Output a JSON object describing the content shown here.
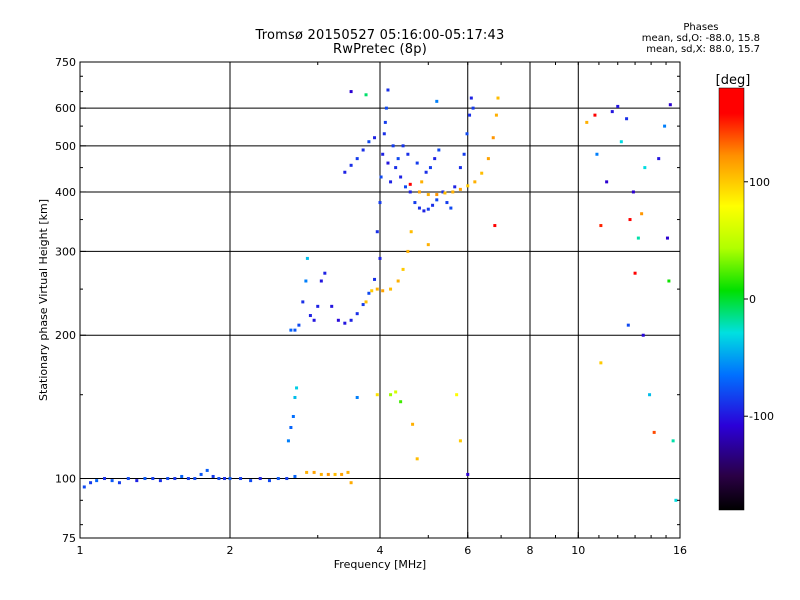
{
  "title": {
    "line1": "Tromsø 20150527 05:16:00-05:17:43",
    "line2": "RwPretec (8p)"
  },
  "phases": {
    "header": "Phases",
    "line_o": "mean, sd,O: -88.0, 15.8",
    "line_x": "mean, sd,X:  88.0, 15.7"
  },
  "colorbar": {
    "label": "[deg]",
    "range": [
      -180,
      180
    ],
    "ticks": [
      {
        "value": 100,
        "label": "100"
      },
      {
        "value": 0,
        "label": "0"
      },
      {
        "value": -100,
        "label": "-100"
      }
    ]
  },
  "chart_data": {
    "type": "scatter",
    "xlabel": "Frequency [MHz]",
    "ylabel": "Stationary phase Virtual Height [km]",
    "xscale": "log",
    "yscale": "log",
    "xlim": [
      1,
      16
    ],
    "ylim": [
      75,
      750
    ],
    "xticks": [
      {
        "value": 1,
        "label": "1"
      },
      {
        "value": 2,
        "label": "2"
      },
      {
        "value": 4,
        "label": "4"
      },
      {
        "value": 6,
        "label": "6"
      },
      {
        "value": 8,
        "label": "8"
      },
      {
        "value": 10,
        "label": "10"
      },
      {
        "value": 16,
        "label": "16"
      }
    ],
    "xgrid": [
      2,
      4,
      6,
      8,
      10
    ],
    "yticks": [
      {
        "value": 75,
        "label": "75"
      },
      {
        "value": 100,
        "label": "100"
      },
      {
        "value": 200,
        "label": "200"
      },
      {
        "value": 300,
        "label": "300"
      },
      {
        "value": 400,
        "label": "400"
      },
      {
        "value": 500,
        "label": "500"
      },
      {
        "value": 600,
        "label": "600"
      },
      {
        "value": 750,
        "label": "750"
      }
    ],
    "ygrid": [
      100,
      200,
      300,
      400,
      500,
      600
    ],
    "grid": true,
    "points": [
      {
        "f": 1.02,
        "h": 96,
        "p": -80
      },
      {
        "f": 1.05,
        "h": 98,
        "p": -85
      },
      {
        "f": 1.08,
        "h": 99,
        "p": -70
      },
      {
        "f": 1.12,
        "h": 100,
        "p": -90
      },
      {
        "f": 1.16,
        "h": 99,
        "p": -75
      },
      {
        "f": 1.2,
        "h": 98,
        "p": -85
      },
      {
        "f": 1.25,
        "h": 100,
        "p": -80
      },
      {
        "f": 1.3,
        "h": 99,
        "p": -95
      },
      {
        "f": 1.35,
        "h": 100,
        "p": -75
      },
      {
        "f": 1.4,
        "h": 100,
        "p": -85
      },
      {
        "f": 1.45,
        "h": 99,
        "p": -90
      },
      {
        "f": 1.5,
        "h": 100,
        "p": -80
      },
      {
        "f": 1.55,
        "h": 100,
        "p": -88
      },
      {
        "f": 1.6,
        "h": 101,
        "p": -70
      },
      {
        "f": 1.65,
        "h": 100,
        "p": -85
      },
      {
        "f": 1.7,
        "h": 100,
        "p": -80
      },
      {
        "f": 1.75,
        "h": 102,
        "p": -75
      },
      {
        "f": 1.8,
        "h": 104,
        "p": -72
      },
      {
        "f": 1.85,
        "h": 101,
        "p": -85
      },
      {
        "f": 1.9,
        "h": 100,
        "p": -80
      },
      {
        "f": 1.95,
        "h": 100,
        "p": -90
      },
      {
        "f": 2.0,
        "h": 100,
        "p": -75
      },
      {
        "f": 2.1,
        "h": 100,
        "p": -85
      },
      {
        "f": 2.2,
        "h": 99,
        "p": -80
      },
      {
        "f": 2.3,
        "h": 100,
        "p": -95
      },
      {
        "f": 2.4,
        "h": 99,
        "p": -80
      },
      {
        "f": 2.5,
        "h": 100,
        "p": -75
      },
      {
        "f": 2.6,
        "h": 100,
        "p": -85
      },
      {
        "f": 2.7,
        "h": 101,
        "p": -70
      },
      {
        "f": 2.85,
        "h": 103,
        "p": 110
      },
      {
        "f": 2.95,
        "h": 103,
        "p": 115
      },
      {
        "f": 3.05,
        "h": 102,
        "p": 110
      },
      {
        "f": 3.15,
        "h": 102,
        "p": 120
      },
      {
        "f": 3.25,
        "h": 102,
        "p": 105
      },
      {
        "f": 3.35,
        "h": 102,
        "p": 115
      },
      {
        "f": 3.45,
        "h": 103,
        "p": 110
      },
      {
        "f": 3.5,
        "h": 98,
        "p": 112
      },
      {
        "f": 2.62,
        "h": 120,
        "p": -60
      },
      {
        "f": 2.65,
        "h": 128,
        "p": -70
      },
      {
        "f": 2.68,
        "h": 135,
        "p": -65
      },
      {
        "f": 2.7,
        "h": 148,
        "p": -40
      },
      {
        "f": 2.72,
        "h": 155,
        "p": -35
      },
      {
        "f": 2.65,
        "h": 205,
        "p": -70
      },
      {
        "f": 2.7,
        "h": 205,
        "p": -75
      },
      {
        "f": 2.75,
        "h": 210,
        "p": -80
      },
      {
        "f": 2.8,
        "h": 235,
        "p": -90
      },
      {
        "f": 2.84,
        "h": 260,
        "p": -60
      },
      {
        "f": 2.86,
        "h": 290,
        "p": -40
      },
      {
        "f": 2.9,
        "h": 220,
        "p": -95
      },
      {
        "f": 2.95,
        "h": 215,
        "p": -100
      },
      {
        "f": 3.0,
        "h": 230,
        "p": -95
      },
      {
        "f": 3.05,
        "h": 260,
        "p": -100
      },
      {
        "f": 3.1,
        "h": 270,
        "p": -95
      },
      {
        "f": 3.2,
        "h": 230,
        "p": -100
      },
      {
        "f": 3.3,
        "h": 215,
        "p": -105
      },
      {
        "f": 3.4,
        "h": 212,
        "p": -100
      },
      {
        "f": 3.5,
        "h": 215,
        "p": -95
      },
      {
        "f": 3.6,
        "h": 222,
        "p": -90
      },
      {
        "f": 3.7,
        "h": 232,
        "p": -85
      },
      {
        "f": 3.8,
        "h": 245,
        "p": -80
      },
      {
        "f": 3.9,
        "h": 262,
        "p": -90
      },
      {
        "f": 4.0,
        "h": 290,
        "p": -95
      },
      {
        "f": 3.75,
        "h": 235,
        "p": 105
      },
      {
        "f": 3.85,
        "h": 248,
        "p": 100
      },
      {
        "f": 3.95,
        "h": 250,
        "p": 110
      },
      {
        "f": 4.05,
        "h": 248,
        "p": 115
      },
      {
        "f": 4.2,
        "h": 250,
        "p": 105
      },
      {
        "f": 4.35,
        "h": 260,
        "p": 110
      },
      {
        "f": 4.45,
        "h": 275,
        "p": 100
      },
      {
        "f": 4.55,
        "h": 300,
        "p": 110
      },
      {
        "f": 4.62,
        "h": 330,
        "p": 105
      },
      {
        "f": 3.4,
        "h": 440,
        "p": -95
      },
      {
        "f": 3.5,
        "h": 455,
        "p": -90
      },
      {
        "f": 3.6,
        "h": 470,
        "p": -85
      },
      {
        "f": 3.7,
        "h": 490,
        "p": -90
      },
      {
        "f": 3.8,
        "h": 510,
        "p": -80
      },
      {
        "f": 3.9,
        "h": 520,
        "p": -95
      },
      {
        "f": 3.5,
        "h": 650,
        "p": -110
      },
      {
        "f": 3.75,
        "h": 640,
        "p": -10
      },
      {
        "f": 3.95,
        "h": 330,
        "p": -90
      },
      {
        "f": 4.0,
        "h": 380,
        "p": -85
      },
      {
        "f": 4.02,
        "h": 430,
        "p": -80
      },
      {
        "f": 4.05,
        "h": 480,
        "p": -95
      },
      {
        "f": 4.08,
        "h": 530,
        "p": -90
      },
      {
        "f": 4.1,
        "h": 560,
        "p": -85
      },
      {
        "f": 4.12,
        "h": 600,
        "p": -80
      },
      {
        "f": 4.15,
        "h": 460,
        "p": -100
      },
      {
        "f": 4.2,
        "h": 420,
        "p": -95
      },
      {
        "f": 4.25,
        "h": 500,
        "p": -85
      },
      {
        "f": 4.3,
        "h": 450,
        "p": -90
      },
      {
        "f": 4.35,
        "h": 470,
        "p": -80
      },
      {
        "f": 4.4,
        "h": 430,
        "p": -95
      },
      {
        "f": 4.45,
        "h": 500,
        "p": -88
      },
      {
        "f": 4.5,
        "h": 410,
        "p": -80
      },
      {
        "f": 4.55,
        "h": 480,
        "p": -90
      },
      {
        "f": 4.6,
        "h": 400,
        "p": -95
      },
      {
        "f": 4.7,
        "h": 380,
        "p": -85
      },
      {
        "f": 4.8,
        "h": 370,
        "p": -90
      },
      {
        "f": 4.9,
        "h": 365,
        "p": -95
      },
      {
        "f": 5.0,
        "h": 368,
        "p": -85
      },
      {
        "f": 5.1,
        "h": 375,
        "p": -90
      },
      {
        "f": 5.2,
        "h": 385,
        "p": -80
      },
      {
        "f": 4.75,
        "h": 460,
        "p": -85
      },
      {
        "f": 4.85,
        "h": 420,
        "p": 110
      },
      {
        "f": 4.95,
        "h": 440,
        "p": -90
      },
      {
        "f": 5.05,
        "h": 450,
        "p": -85
      },
      {
        "f": 5.15,
        "h": 470,
        "p": -95
      },
      {
        "f": 5.25,
        "h": 490,
        "p": -80
      },
      {
        "f": 5.35,
        "h": 400,
        "p": -90
      },
      {
        "f": 5.45,
        "h": 380,
        "p": -85
      },
      {
        "f": 5.55,
        "h": 370,
        "p": -80
      },
      {
        "f": 5.65,
        "h": 410,
        "p": -95
      },
      {
        "f": 5.8,
        "h": 450,
        "p": -90
      },
      {
        "f": 5.9,
        "h": 480,
        "p": -85
      },
      {
        "f": 5.98,
        "h": 530,
        "p": -80
      },
      {
        "f": 6.05,
        "h": 580,
        "p": -90
      },
      {
        "f": 6.1,
        "h": 630,
        "p": -95
      },
      {
        "f": 6.15,
        "h": 600,
        "p": -85
      },
      {
        "f": 4.8,
        "h": 400,
        "p": 115
      },
      {
        "f": 5.0,
        "h": 395,
        "p": 110
      },
      {
        "f": 5.2,
        "h": 395,
        "p": 120
      },
      {
        "f": 5.4,
        "h": 398,
        "p": 105
      },
      {
        "f": 5.6,
        "h": 400,
        "p": 110
      },
      {
        "f": 5.8,
        "h": 405,
        "p": 115
      },
      {
        "f": 6.0,
        "h": 412,
        "p": 100
      },
      {
        "f": 6.2,
        "h": 420,
        "p": 110
      },
      {
        "f": 6.4,
        "h": 438,
        "p": 105
      },
      {
        "f": 6.6,
        "h": 470,
        "p": 115
      },
      {
        "f": 6.75,
        "h": 520,
        "p": 120
      },
      {
        "f": 6.85,
        "h": 580,
        "p": 110
      },
      {
        "f": 6.9,
        "h": 630,
        "p": 105
      },
      {
        "f": 4.2,
        "h": 150,
        "p": 40
      },
      {
        "f": 4.3,
        "h": 152,
        "p": 60
      },
      {
        "f": 4.4,
        "h": 145,
        "p": 20
      },
      {
        "f": 4.65,
        "h": 130,
        "p": 110
      },
      {
        "f": 4.75,
        "h": 110,
        "p": 105
      },
      {
        "f": 3.6,
        "h": 148,
        "p": -60
      },
      {
        "f": 3.95,
        "h": 150,
        "p": 90
      },
      {
        "f": 5.7,
        "h": 150,
        "p": 80
      },
      {
        "f": 5.8,
        "h": 120,
        "p": 100
      },
      {
        "f": 6.0,
        "h": 102,
        "p": -110
      },
      {
        "f": 6.8,
        "h": 340,
        "p": 170
      },
      {
        "f": 4.6,
        "h": 415,
        "p": 160
      },
      {
        "f": 4.15,
        "h": 655,
        "p": -90
      },
      {
        "f": 10.4,
        "h": 560,
        "p": 110
      },
      {
        "f": 10.8,
        "h": 580,
        "p": 170
      },
      {
        "f": 10.9,
        "h": 480,
        "p": -60
      },
      {
        "f": 11.1,
        "h": 340,
        "p": 150
      },
      {
        "f": 11.1,
        "h": 175,
        "p": 100
      },
      {
        "f": 11.4,
        "h": 420,
        "p": -110
      },
      {
        "f": 11.7,
        "h": 590,
        "p": -100
      },
      {
        "f": 12.2,
        "h": 510,
        "p": -30
      },
      {
        "f": 12.5,
        "h": 570,
        "p": -90
      },
      {
        "f": 12.6,
        "h": 210,
        "p": -80
      },
      {
        "f": 12.7,
        "h": 350,
        "p": 170
      },
      {
        "f": 12.9,
        "h": 400,
        "p": -110
      },
      {
        "f": 13.0,
        "h": 270,
        "p": 160
      },
      {
        "f": 13.2,
        "h": 320,
        "p": -20
      },
      {
        "f": 13.4,
        "h": 360,
        "p": 120
      },
      {
        "f": 13.6,
        "h": 450,
        "p": -30
      },
      {
        "f": 13.9,
        "h": 150,
        "p": -40
      },
      {
        "f": 14.2,
        "h": 125,
        "p": 140
      },
      {
        "f": 14.5,
        "h": 470,
        "p": -100
      },
      {
        "f": 14.9,
        "h": 550,
        "p": -60
      },
      {
        "f": 15.1,
        "h": 320,
        "p": -110
      },
      {
        "f": 15.2,
        "h": 260,
        "p": 10
      },
      {
        "f": 15.3,
        "h": 610,
        "p": -110
      },
      {
        "f": 15.5,
        "h": 120,
        "p": -20
      },
      {
        "f": 15.7,
        "h": 90,
        "p": -30
      },
      {
        "f": 13.5,
        "h": 200,
        "p": -105
      },
      {
        "f": 12.0,
        "h": 605,
        "p": -100
      },
      {
        "f": 5.2,
        "h": 620,
        "p": -60
      },
      {
        "f": 5.0,
        "h": 310,
        "p": 110
      }
    ]
  }
}
